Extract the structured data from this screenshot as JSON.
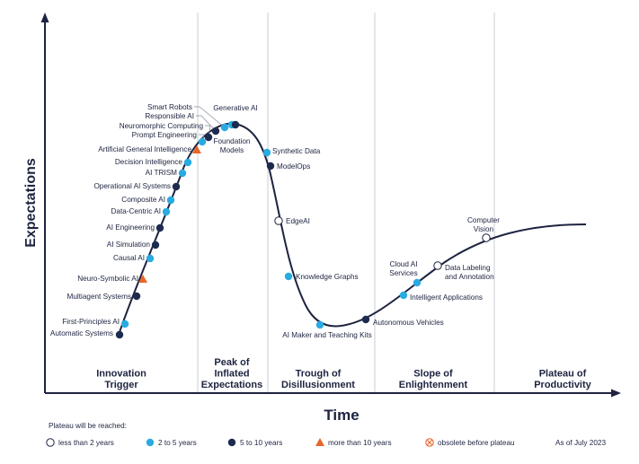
{
  "axes": {
    "y_title": "Expectations",
    "x_title": "Time"
  },
  "phases": [
    {
      "lines": [
        "Innovation",
        "Trigger"
      ]
    },
    {
      "lines": [
        "Peak of",
        "Inflated",
        "Expectations"
      ]
    },
    {
      "lines": [
        "Trough of",
        "Disillusionment"
      ]
    },
    {
      "lines": [
        "Slope of",
        "Enlightenment"
      ]
    },
    {
      "lines": [
        "Plateau of",
        "Productivity"
      ]
    }
  ],
  "colors": {
    "ink": "#1d2340",
    "lt2": "#ffffff",
    "y2to5": "#29abe2",
    "y5to10": "#1d2b4f",
    "y10plus": "#e8662a",
    "obsolete": "#e8662a",
    "divider": "#c9cdd6"
  },
  "technologies": [
    {
      "label": [
        "Automatic Systems"
      ],
      "horizon": "y5to10"
    },
    {
      "label": [
        "First-Principles AI"
      ],
      "horizon": "y2to5"
    },
    {
      "label": [
        "Multiagent Systems"
      ],
      "horizon": "y5to10"
    },
    {
      "label": [
        "Neuro-Symbolic AI"
      ],
      "horizon": "y10plus"
    },
    {
      "label": [
        "Causal AI"
      ],
      "horizon": "y2to5"
    },
    {
      "label": [
        "AI Simulation"
      ],
      "horizon": "y5to10"
    },
    {
      "label": [
        "AI Engineering"
      ],
      "horizon": "y5to10"
    },
    {
      "label": [
        "Data-Centric AI"
      ],
      "horizon": "y2to5"
    },
    {
      "label": [
        "Composite AI"
      ],
      "horizon": "y2to5"
    },
    {
      "label": [
        "Operational AI Systems"
      ],
      "horizon": "y5to10"
    },
    {
      "label": [
        "AI TRISM"
      ],
      "horizon": "y2to5"
    },
    {
      "label": [
        "Decision Intelligence"
      ],
      "horizon": "y2to5"
    },
    {
      "label": [
        "Artificial General Intelligence"
      ],
      "horizon": "y10plus"
    },
    {
      "label": [
        "Prompt Engineering"
      ],
      "horizon": "y2to5"
    },
    {
      "label": [
        "Neuromorphic Computing"
      ],
      "horizon": "y5to10"
    },
    {
      "label": [
        "Responsible AI"
      ],
      "horizon": "y5to10"
    },
    {
      "label": [
        "Smart Robots"
      ],
      "horizon": "y2to5"
    },
    {
      "label": [
        "Generative AI"
      ],
      "horizon": "y2to5"
    },
    {
      "label": [
        "Foundation",
        "Models"
      ],
      "horizon": "y5to10"
    },
    {
      "label": [
        "Synthetic Data"
      ],
      "horizon": "y2to5"
    },
    {
      "label": [
        "ModelOps"
      ],
      "horizon": "y5to10"
    },
    {
      "label": [
        "EdgeAI"
      ],
      "horizon": "lt2"
    },
    {
      "label": [
        "Knowledge Graphs"
      ],
      "horizon": "y2to5"
    },
    {
      "label": [
        "AI Maker and Teaching Kits"
      ],
      "horizon": "y2to5"
    },
    {
      "label": [
        "Autonomous Vehicles"
      ],
      "horizon": "y5to10"
    },
    {
      "label": [
        "Intelligent Applications"
      ],
      "horizon": "y2to5"
    },
    {
      "label": [
        "Cloud AI",
        "Services"
      ],
      "horizon": "y2to5"
    },
    {
      "label": [
        "Data Labeling",
        "and Annotation"
      ],
      "horizon": "lt2"
    },
    {
      "label": [
        "Computer",
        "Vision"
      ],
      "horizon": "lt2"
    }
  ],
  "legend": {
    "title": "Plateau will be reached:",
    "items": [
      {
        "horizon": "lt2",
        "label": "less than 2 years"
      },
      {
        "horizon": "y2to5",
        "label": "2 to 5 years"
      },
      {
        "horizon": "y5to10",
        "label": "5 to 10 years"
      },
      {
        "horizon": "y10plus",
        "label": "more than 10 years"
      },
      {
        "horizon": "obsolete",
        "label": "obsolete before plateau"
      }
    ],
    "as_of": "As of July 2023"
  }
}
